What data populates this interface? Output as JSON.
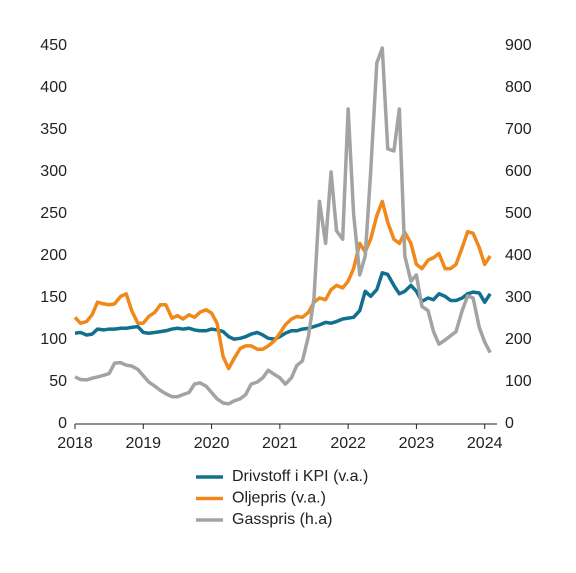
{
  "chart_data": {
    "type": "line",
    "x": [
      2018,
      2018.08,
      2018.17,
      2018.25,
      2018.33,
      2018.42,
      2018.5,
      2018.58,
      2018.67,
      2018.75,
      2018.83,
      2018.92,
      2019,
      2019.08,
      2019.17,
      2019.25,
      2019.33,
      2019.42,
      2019.5,
      2019.58,
      2019.67,
      2019.75,
      2019.83,
      2019.92,
      2020,
      2020.08,
      2020.17,
      2020.25,
      2020.33,
      2020.42,
      2020.5,
      2020.58,
      2020.67,
      2020.75,
      2020.83,
      2020.92,
      2021,
      2021.08,
      2021.17,
      2021.25,
      2021.33,
      2021.42,
      2021.5,
      2021.58,
      2021.67,
      2021.75,
      2021.83,
      2021.92,
      2022,
      2022.08,
      2022.17,
      2022.25,
      2022.33,
      2022.42,
      2022.5,
      2022.58,
      2022.67,
      2022.75,
      2022.83,
      2022.92,
      2023,
      2023.08,
      2023.17,
      2023.25,
      2023.33,
      2023.42,
      2023.5,
      2023.58,
      2023.67,
      2023.75,
      2023.83,
      2023.92,
      2024,
      2024.08
    ],
    "series": [
      {
        "name": "Drivstoff i KPI (v.a.)",
        "color": "#11708f",
        "values": [
          108,
          109,
          106,
          107,
          113,
          112,
          113,
          113,
          114,
          114,
          115,
          116,
          109,
          108,
          109,
          110,
          111,
          113,
          114,
          113,
          114,
          112,
          111,
          111,
          113,
          112,
          110,
          104,
          101,
          102,
          104,
          107,
          109,
          106,
          102,
          101,
          104,
          108,
          111,
          111,
          113,
          114,
          116,
          118,
          121,
          120,
          122,
          125,
          126,
          127,
          135,
          158,
          152,
          160,
          180,
          178,
          165,
          155,
          158,
          165,
          158,
          146,
          150,
          148,
          155,
          152,
          147,
          147,
          150,
          155,
          157,
          156,
          145,
          155
        ]
      },
      {
        "name": "Oljepris (v.a.)",
        "color": "#f0881a",
        "values": [
          127,
          120,
          122,
          130,
          145,
          143,
          142,
          143,
          152,
          155,
          135,
          120,
          120,
          128,
          133,
          142,
          142,
          126,
          129,
          125,
          130,
          127,
          133,
          136,
          132,
          120,
          80,
          66,
          78,
          90,
          93,
          93,
          89,
          89,
          93,
          99,
          108,
          118,
          125,
          128,
          127,
          133,
          145,
          150,
          148,
          160,
          165,
          162,
          170,
          185,
          215,
          205,
          220,
          248,
          265,
          240,
          220,
          215,
          228,
          215,
          190,
          185,
          195,
          198,
          203,
          185,
          185,
          190,
          210,
          229,
          227,
          210,
          190,
          200
        ]
      },
      {
        "name": "Gasspris (h.a)",
        "color": "#a3a3a3",
        "axis": "y2",
        "values": [
          112,
          106,
          105,
          109,
          112,
          116,
          120,
          145,
          146,
          140,
          138,
          130,
          115,
          100,
          90,
          80,
          72,
          65,
          65,
          70,
          75,
          95,
          98,
          90,
          75,
          60,
          50,
          48,
          55,
          60,
          70,
          95,
          100,
          110,
          128,
          118,
          110,
          95,
          110,
          140,
          150,
          210,
          300,
          530,
          430,
          600,
          460,
          440,
          750,
          500,
          355,
          400,
          600,
          860,
          895,
          655,
          650,
          750,
          400,
          340,
          355,
          280,
          270,
          220,
          190,
          200,
          210,
          220,
          270,
          305,
          300,
          230,
          195,
          170
        ]
      }
    ],
    "xlim": [
      2018,
      2024.18
    ],
    "xticks": [
      2018,
      2019,
      2020,
      2021,
      2022,
      2023,
      2024
    ],
    "ylim": [
      0,
      450
    ],
    "yticks": [
      0,
      50,
      100,
      150,
      200,
      250,
      300,
      350,
      400,
      450
    ],
    "y2lim": [
      0,
      900
    ],
    "y2ticks": [
      0,
      100,
      200,
      300,
      400,
      500,
      600,
      700,
      800,
      900
    ],
    "grid": false,
    "legend": "bottom"
  }
}
